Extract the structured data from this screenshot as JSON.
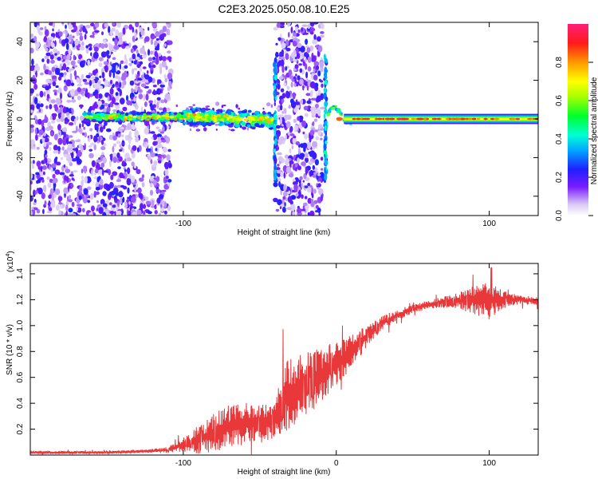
{
  "title": "C2E3.2025.050.08.10.E25",
  "colors": {
    "snr_line": "#e8383a",
    "frame": "#000000",
    "background": "#ffffff"
  },
  "chart_data": [
    {
      "type": "heatmap",
      "title": "C2E3.2025.050.08.10.E25",
      "xlabel": "Height of straight line (km)",
      "ylabel": "Frequency (Hz)",
      "xlim": [
        -200,
        132
      ],
      "ylim": [
        -50,
        50
      ],
      "xticks": [
        -100,
        0,
        100
      ],
      "xtick_labels": [
        "-100",
        "",
        "100"
      ],
      "yticks": [
        -40,
        -20,
        0,
        20,
        40
      ],
      "ytick_labels": [
        "-40",
        "-20",
        "0",
        "20",
        "40"
      ],
      "colorbar": {
        "label": "Normalized spectral amplitude",
        "range": [
          0,
          1
        ],
        "ticks": [
          0.0,
          0.2,
          0.4,
          0.6,
          0.8
        ],
        "tick_labels": [
          "0.0",
          "0.2",
          "0.4",
          "0.6",
          "0.8"
        ],
        "colormap": "rainbow-on-white"
      },
      "features": {
        "noise_regions_x": [
          [
            -200,
            -108
          ],
          [
            -40,
            -9
          ]
        ],
        "gap_region_x": [
          -108,
          -40
        ],
        "central_band_freq_hz": 0,
        "bright_line_x": [
          5,
          132
        ],
        "vertical_spikes_x": [
          -40,
          -7
        ]
      },
      "grid": false
    },
    {
      "type": "line",
      "xlabel": "Height of straight line (km)",
      "ylabel": "SNR (10 * v/v)",
      "y_multiplier_label": "(x10",
      "y_multiplier_exp": "4",
      "xlim": [
        -200,
        132
      ],
      "ylim": [
        0,
        1.48
      ],
      "xticks": [
        -100,
        0,
        100
      ],
      "xtick_labels": [
        "-100",
        "0",
        "100"
      ],
      "yticks": [
        0.2,
        0.4,
        0.6,
        0.8,
        1.0,
        1.2,
        1.4
      ],
      "ytick_labels": [
        "0.2",
        "0.4",
        "0.6",
        "0.8",
        "1.0",
        "1.2",
        "1.4"
      ],
      "grid": false,
      "series": [
        {
          "color": "#e8383a",
          "envelope": {
            "x": [
              -200,
              -150,
              -125,
              -110,
              -100,
              -90,
              -80,
              -70,
              -60,
              -50,
              -40,
              -35,
              -30,
              -25,
              -20,
              -15,
              -10,
              -5,
              0,
              10,
              20,
              30,
              40,
              50,
              60,
              70,
              80,
              90,
              100,
              110,
              120,
              132
            ],
            "y": [
              0.02,
              0.02,
              0.03,
              0.04,
              0.08,
              0.12,
              0.17,
              0.22,
              0.25,
              0.24,
              0.26,
              0.42,
              0.48,
              0.52,
              0.55,
              0.58,
              0.62,
              0.66,
              0.7,
              0.8,
              0.92,
              1.02,
              1.08,
              1.13,
              1.16,
              1.18,
              1.19,
              1.2,
              1.2,
              1.2,
              1.2,
              1.19
            ],
            "amp": [
              0.01,
              0.01,
              0.01,
              0.02,
              0.05,
              0.1,
              0.14,
              0.16,
              0.15,
              0.14,
              0.12,
              0.25,
              0.25,
              0.24,
              0.22,
              0.22,
              0.2,
              0.18,
              0.15,
              0.12,
              0.08,
              0.05,
              0.04,
              0.03,
              0.03,
              0.04,
              0.06,
              0.1,
              0.14,
              0.06,
              0.03,
              0.03
            ]
          }
        }
      ]
    }
  ]
}
